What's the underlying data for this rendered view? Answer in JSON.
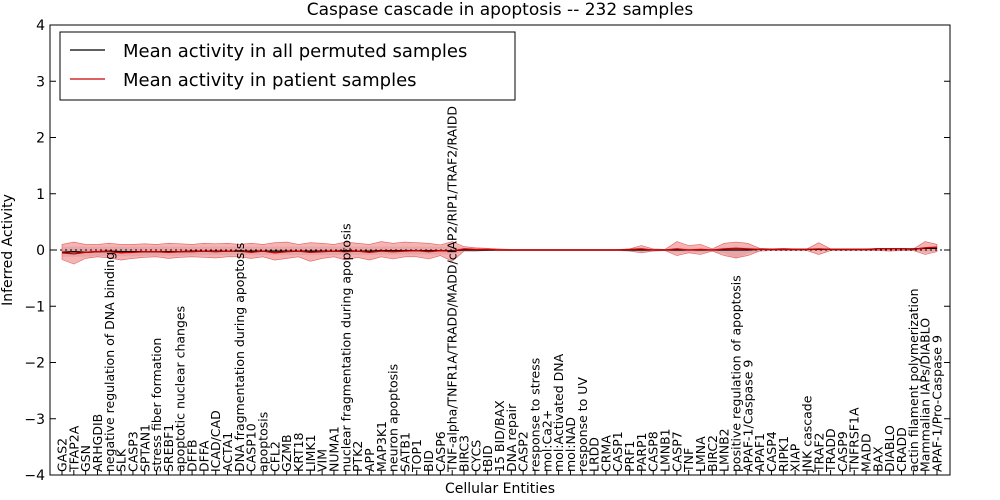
{
  "chart_data": {
    "type": "line",
    "title": "Caspase cascade in apoptosis -- 232 samples",
    "xlabel": "Cellular Entities",
    "ylabel": "Inferred Activity",
    "ylim": [
      -4,
      4
    ],
    "yticks": [
      -4,
      -3,
      -2,
      -1,
      0,
      1,
      2,
      3,
      4
    ],
    "ytick_labels": [
      "−4",
      "−3",
      "−2",
      "−1",
      "0",
      "1",
      "2",
      "3",
      "4"
    ],
    "legend_position": "top-left",
    "colors": {
      "permuted": "#000000",
      "patient": "#cc0000",
      "patient_band": "#f08080",
      "permuted_band": "#c8c8c8"
    },
    "categories": [
      "GAS2",
      "TFAP2A",
      "GSN",
      "ARHGDIB",
      "negative regulation of DNA binding",
      "SLK",
      "CASP3",
      "SPTAN1",
      "stress fiber formation",
      "SREBF1",
      "apoptotic nuclear changes",
      "DFFB",
      "DFFA",
      "ICAD/CAD",
      "ACTA1",
      "DNA fragmentation during apoptosis",
      "CASP10",
      "apoptosis",
      "CFL2",
      "GZMB",
      "KRT18",
      "LIMK1",
      "VIM",
      "NUMA1",
      "nuclear fragmentation during apoptosis",
      "PTK2",
      "APP",
      "MAP3K1",
      "neuron apoptosis",
      "SATB1",
      "TOP1",
      "BID",
      "CASP6",
      "TNF-alpha/TNFR1A/TRADD/MADD/cIAP2/RIP1/TRAF2/RAIDD",
      "BIRC3",
      "CYCS",
      "tBID",
      "15 BID/BAX",
      "DNA repair",
      "CASP2",
      "response to stress",
      "mol:Ca2+",
      "mol:Activated DNA",
      "mol:NAD",
      "response to UV",
      "LRDD",
      "CRMA",
      "CASP1",
      "PRF1",
      "PARP1",
      "CASP8",
      "LMNB1",
      "CASP7",
      "TNF",
      "LMNA",
      "BIRC2",
      "LMNB2",
      "positive regulation of apoptosis",
      "APAF-1/Caspase 9",
      "APAF1",
      "CASP4",
      "RIPK1",
      "XIAP",
      "JNK cascade",
      "TRAF2",
      "TRADD",
      "CASP9",
      "TNFRSF1A",
      "MADD",
      "BAX",
      "DIABLO",
      "CRADD",
      "actin filament polymerization",
      "Mammalian IAPs/DIABLO",
      "APAF-1/Pro-Caspase 9"
    ],
    "series": [
      {
        "name": "Mean activity in all permuted samples",
        "values": [
          -0.04,
          -0.03,
          -0.04,
          -0.03,
          -0.02,
          -0.03,
          -0.03,
          -0.03,
          -0.03,
          -0.03,
          -0.03,
          -0.02,
          -0.02,
          -0.02,
          -0.02,
          -0.02,
          -0.02,
          -0.02,
          -0.02,
          -0.02,
          -0.02,
          -0.02,
          -0.02,
          -0.02,
          -0.01,
          -0.02,
          -0.02,
          -0.01,
          -0.01,
          -0.01,
          -0.01,
          -0.01,
          -0.01,
          -0.01,
          0.0,
          0.0,
          0.0,
          0.0,
          0.0,
          0.0,
          0.0,
          0.0,
          0.0,
          0.0,
          0.0,
          0.0,
          0.0,
          0.0,
          0.0,
          0.0,
          0.0,
          0.0,
          0.0,
          0.0,
          0.0,
          0.0,
          0.0,
          0.0,
          0.0,
          0.01,
          0.01,
          0.01,
          0.01,
          0.01,
          0.01,
          0.01,
          0.01,
          0.01,
          0.01,
          0.02,
          0.02,
          0.02,
          0.02,
          0.03,
          0.03
        ]
      },
      {
        "name": "Mean activity in patient samples",
        "values": [
          -0.05,
          -0.07,
          -0.04,
          -0.03,
          -0.03,
          -0.05,
          -0.04,
          -0.03,
          -0.03,
          -0.04,
          -0.03,
          -0.03,
          -0.02,
          -0.03,
          -0.02,
          -0.02,
          -0.04,
          -0.02,
          -0.05,
          -0.03,
          -0.02,
          -0.04,
          -0.03,
          -0.02,
          -0.03,
          -0.02,
          -0.04,
          -0.02,
          -0.03,
          -0.02,
          -0.01,
          -0.03,
          -0.01,
          -0.02,
          0.02,
          0.01,
          0.01,
          0.0,
          0.0,
          0.0,
          0.0,
          0.0,
          0.0,
          0.0,
          0.0,
          0.0,
          0.0,
          0.0,
          0.01,
          0.02,
          0.0,
          0.0,
          0.02,
          0.0,
          0.01,
          0.0,
          0.02,
          0.03,
          0.02,
          0.01,
          0.01,
          0.01,
          0.01,
          0.01,
          0.02,
          0.01,
          0.01,
          0.01,
          0.01,
          0.02,
          0.02,
          0.02,
          0.01,
          0.04,
          0.05
        ]
      }
    ],
    "patient_band": {
      "upper": [
        0.1,
        0.14,
        0.1,
        0.1,
        0.12,
        0.1,
        0.1,
        0.11,
        0.1,
        0.12,
        0.11,
        0.1,
        0.12,
        0.11,
        0.12,
        0.1,
        0.12,
        0.1,
        0.13,
        0.14,
        0.1,
        0.13,
        0.12,
        0.1,
        0.14,
        0.12,
        0.1,
        0.15,
        0.12,
        0.14,
        0.13,
        0.12,
        0.09,
        0.15,
        0.06,
        0.04,
        0.03,
        0.02,
        0.01,
        0.01,
        0.01,
        0.01,
        0.01,
        0.01,
        0.01,
        0.01,
        0.01,
        0.01,
        0.02,
        0.08,
        0.02,
        0.01,
        0.15,
        0.08,
        0.1,
        0.02,
        0.12,
        0.14,
        0.12,
        0.03,
        0.02,
        0.03,
        0.02,
        0.02,
        0.13,
        0.02,
        0.02,
        0.02,
        0.02,
        0.03,
        0.03,
        0.03,
        0.02,
        0.15,
        0.1
      ],
      "lower": [
        -0.17,
        -0.25,
        -0.15,
        -0.12,
        -0.14,
        -0.18,
        -0.15,
        -0.13,
        -0.12,
        -0.15,
        -0.13,
        -0.12,
        -0.13,
        -0.14,
        -0.12,
        -0.12,
        -0.15,
        -0.12,
        -0.18,
        -0.15,
        -0.12,
        -0.2,
        -0.15,
        -0.12,
        -0.18,
        -0.13,
        -0.18,
        -0.12,
        -0.16,
        -0.12,
        -0.12,
        -0.16,
        -0.1,
        -0.2,
        -0.02,
        -0.02,
        -0.01,
        -0.01,
        -0.01,
        -0.01,
        -0.01,
        -0.01,
        -0.01,
        -0.01,
        -0.01,
        -0.01,
        -0.01,
        -0.01,
        -0.02,
        -0.05,
        -0.02,
        -0.01,
        -0.1,
        -0.05,
        -0.08,
        -0.02,
        -0.1,
        -0.14,
        -0.1,
        -0.02,
        -0.01,
        -0.01,
        -0.01,
        -0.01,
        -0.08,
        -0.01,
        -0.01,
        -0.01,
        -0.01,
        -0.01,
        -0.02,
        -0.01,
        -0.01,
        -0.08,
        -0.03
      ]
    },
    "permuted_band": {
      "upper": [
        0.06,
        0.06,
        0.06,
        0.06,
        0.06,
        0.06,
        0.06,
        0.06,
        0.06,
        0.06,
        0.06,
        0.06,
        0.06,
        0.06,
        0.06,
        0.06,
        0.06,
        0.06,
        0.06,
        0.06,
        0.06,
        0.06,
        0.06,
        0.06,
        0.06,
        0.06,
        0.06,
        0.06,
        0.06,
        0.06,
        0.06,
        0.06,
        0.06,
        0.06,
        0.03,
        0.02,
        0.02,
        0.01,
        0.01,
        0.01,
        0.01,
        0.01,
        0.01,
        0.01,
        0.01,
        0.01,
        0.01,
        0.01,
        0.02,
        0.03,
        0.02,
        0.02,
        0.04,
        0.04,
        0.04,
        0.03,
        0.05,
        0.06,
        0.05,
        0.03,
        0.02,
        0.02,
        0.02,
        0.02,
        0.03,
        0.02,
        0.02,
        0.02,
        0.02,
        0.03,
        0.03,
        0.03,
        0.03,
        0.05,
        0.05
      ],
      "lower": [
        -0.12,
        -0.12,
        -0.12,
        -0.11,
        -0.1,
        -0.11,
        -0.11,
        -0.1,
        -0.1,
        -0.1,
        -0.1,
        -0.09,
        -0.09,
        -0.09,
        -0.09,
        -0.09,
        -0.09,
        -0.09,
        -0.09,
        -0.09,
        -0.09,
        -0.09,
        -0.09,
        -0.09,
        -0.08,
        -0.09,
        -0.09,
        -0.08,
        -0.08,
        -0.08,
        -0.08,
        -0.08,
        -0.08,
        -0.08,
        -0.02,
        -0.02,
        -0.01,
        -0.01,
        -0.01,
        -0.01,
        -0.01,
        -0.01,
        -0.01,
        -0.01,
        -0.01,
        -0.01,
        -0.01,
        -0.01,
        -0.02,
        -0.03,
        -0.02,
        -0.02,
        -0.04,
        -0.04,
        -0.04,
        -0.03,
        -0.06,
        -0.16,
        -0.06,
        -0.02,
        -0.01,
        -0.01,
        -0.01,
        -0.01,
        -0.02,
        -0.01,
        -0.01,
        -0.01,
        -0.01,
        -0.01,
        -0.02,
        -0.01,
        -0.01,
        -0.03,
        -0.02
      ]
    }
  }
}
